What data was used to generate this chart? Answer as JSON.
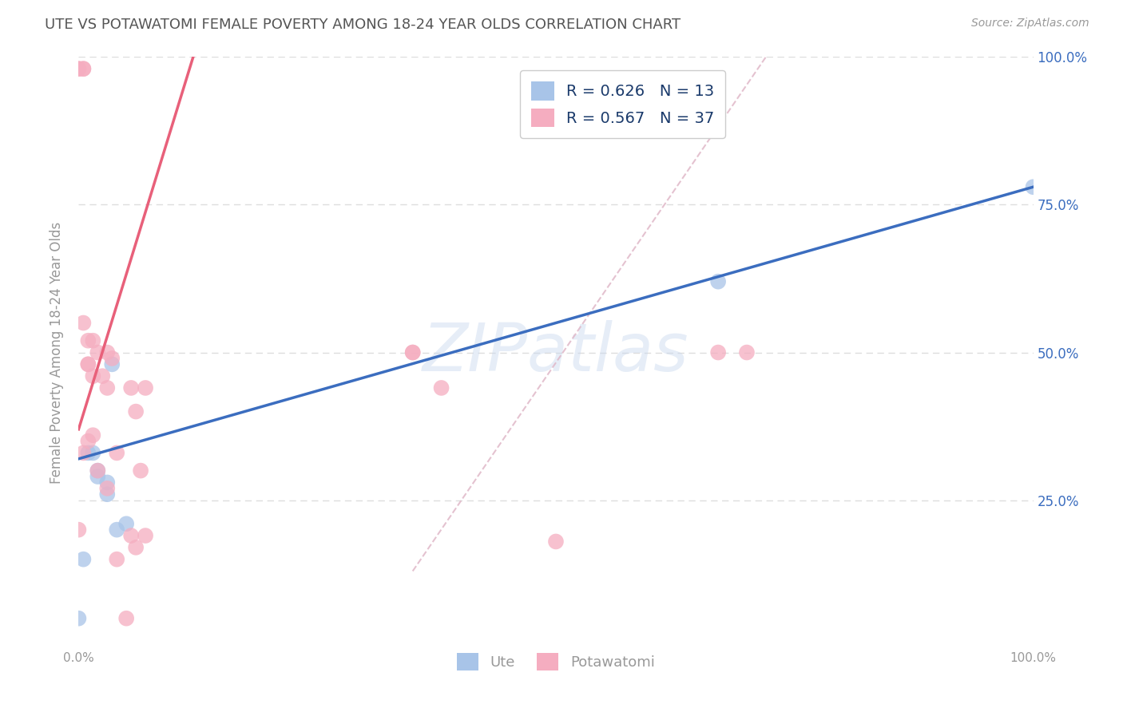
{
  "title": "UTE VS POTAWATOMI FEMALE POVERTY AMONG 18-24 YEAR OLDS CORRELATION CHART",
  "source": "Source: ZipAtlas.com",
  "ylabel": "Female Poverty Among 18-24 Year Olds",
  "watermark": "ZIPatlas",
  "ute_R": 0.626,
  "ute_N": 13,
  "potawatomi_R": 0.567,
  "potawatomi_N": 37,
  "ute_color": "#a8c4e8",
  "potawatomi_color": "#f5adc0",
  "ute_line_color": "#3b6dbf",
  "potawatomi_line_color": "#e8607a",
  "diagonal_color": "#e0b8c8",
  "right_label_color": "#3b6dbf",
  "legend_text_color": "#1a3a6b",
  "title_color": "#555555",
  "background_color": "#ffffff",
  "grid_color": "#dddddd",
  "ute_x": [
    0.0,
    0.5,
    1.0,
    1.5,
    2.0,
    2.0,
    3.0,
    3.0,
    3.5,
    4.0,
    5.0,
    67.0,
    100.0
  ],
  "ute_y": [
    5.0,
    15.0,
    33.0,
    33.0,
    29.0,
    30.0,
    26.0,
    28.0,
    48.0,
    20.0,
    21.0,
    62.0,
    78.0
  ],
  "potawatomi_x": [
    0.0,
    0.0,
    0.0,
    0.5,
    0.5,
    0.5,
    0.5,
    1.0,
    1.0,
    1.0,
    1.0,
    1.5,
    1.5,
    1.5,
    2.0,
    2.0,
    2.5,
    3.0,
    3.0,
    3.0,
    3.5,
    4.0,
    4.0,
    5.0,
    5.5,
    5.5,
    6.0,
    6.0,
    6.5,
    7.0,
    7.0,
    35.0,
    35.0,
    38.0,
    50.0,
    67.0,
    70.0
  ],
  "potawatomi_y": [
    98.0,
    98.0,
    20.0,
    98.0,
    98.0,
    55.0,
    33.0,
    52.0,
    48.0,
    48.0,
    35.0,
    52.0,
    46.0,
    36.0,
    50.0,
    30.0,
    46.0,
    50.0,
    44.0,
    27.0,
    49.0,
    33.0,
    15.0,
    5.0,
    44.0,
    19.0,
    40.0,
    17.0,
    30.0,
    44.0,
    19.0,
    50.0,
    50.0,
    44.0,
    18.0,
    50.0,
    50.0
  ],
  "xlim": [
    0.0,
    100.0
  ],
  "ylim": [
    0.0,
    100.0
  ],
  "ute_line_x0": 0.0,
  "ute_line_y0": 32.0,
  "ute_line_x1": 100.0,
  "ute_line_y1": 78.0,
  "pot_line_x0": 0.0,
  "pot_line_y0": 37.0,
  "pot_line_x1": 12.0,
  "pot_line_y1": 100.0,
  "diag_x0": 35.0,
  "diag_y0": 13.0,
  "diag_x1": 72.0,
  "diag_y1": 100.0,
  "ytick_vals": [
    25.0,
    50.0,
    75.0,
    100.0
  ],
  "ytick_labels": [
    "25.0%",
    "50.0%",
    "75.0%",
    "100.0%"
  ]
}
